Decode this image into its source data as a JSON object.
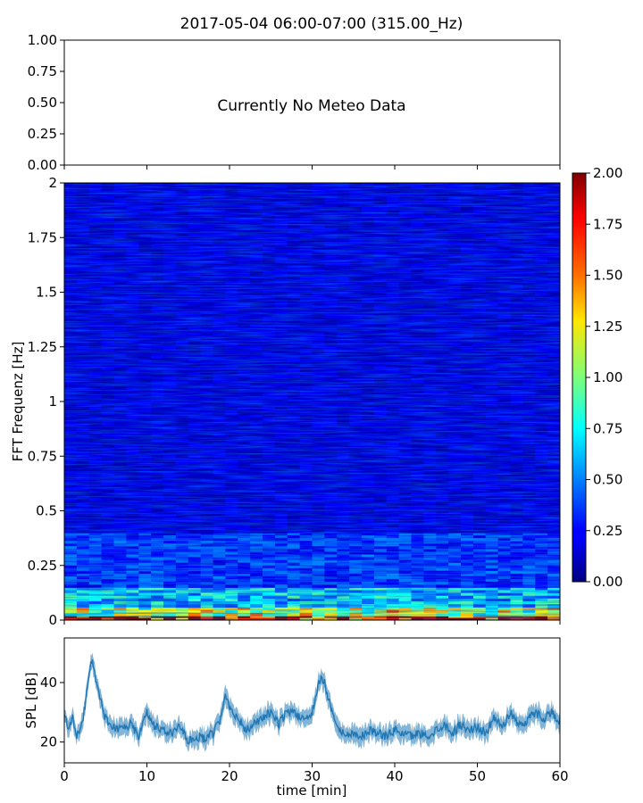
{
  "figure_title": "2017-05-04 06:00-07:00 (315.00_Hz)",
  "chart_data": [
    {
      "type": "text_panel",
      "annotation": "Currently No Meteo Data",
      "ylim": [
        0,
        1
      ],
      "yticks": [
        "0.00",
        "0.25",
        "0.50",
        "0.75",
        "1.00"
      ],
      "xlim": [
        0,
        60
      ]
    },
    {
      "type": "heatmap",
      "ylabel": "FFT Frequenz [Hz]",
      "xlim": [
        0,
        60
      ],
      "ylim": [
        0,
        2
      ],
      "yticks": [
        "0",
        "0.25",
        "0.5",
        "0.75",
        "1",
        "1.25",
        "1.5",
        "1.75",
        "2"
      ],
      "colormap": "jet",
      "colorbar": {
        "range": [
          0,
          2
        ],
        "ticks": [
          "0.00",
          "0.25",
          "0.50",
          "0.75",
          "1.00",
          "1.25",
          "1.50",
          "1.75",
          "2.00"
        ]
      },
      "bands": [
        {
          "f_from": 0.0,
          "f_to": 0.02,
          "value": 1.9
        },
        {
          "f_from": 0.02,
          "f_to": 0.06,
          "value": 1.1
        },
        {
          "f_from": 0.06,
          "f_to": 0.15,
          "value": 0.65
        },
        {
          "f_from": 0.15,
          "f_to": 0.4,
          "value": 0.35
        },
        {
          "f_from": 0.4,
          "f_to": 2.0,
          "value": 0.18
        }
      ]
    },
    {
      "type": "line",
      "ylabel": "SPL [dB]",
      "xlabel": "time [min]",
      "xlim": [
        0,
        60
      ],
      "ylim": [
        13,
        55
      ],
      "yticks": [
        "20",
        "40"
      ],
      "xticks": [
        "0",
        "10",
        "20",
        "30",
        "40",
        "50",
        "60"
      ],
      "color": "#1f77b4",
      "series": [
        {
          "x": [
            0,
            0.5,
            1,
            1.5,
            2,
            2.5,
            3,
            3.3,
            4,
            5,
            6,
            7,
            8,
            9,
            10,
            11,
            12,
            13,
            14,
            15,
            16,
            17,
            18,
            19,
            19.5,
            20,
            21,
            22,
            23,
            24,
            25,
            26,
            27,
            28,
            29,
            30,
            31,
            31.5,
            32,
            33,
            34,
            35,
            36,
            37,
            38,
            39,
            40,
            41,
            42,
            43,
            44,
            45,
            46,
            47,
            48,
            49,
            50,
            51,
            52,
            53,
            54,
            55,
            56,
            57,
            58,
            59,
            60
          ],
          "y": [
            30,
            25,
            28,
            22,
            24,
            32,
            44,
            48,
            38,
            28,
            25,
            24,
            26,
            22,
            30,
            25,
            24,
            23,
            25,
            20,
            22,
            21,
            23,
            28,
            36,
            32,
            28,
            24,
            26,
            28,
            30,
            26,
            31,
            29,
            28,
            30,
            42,
            40,
            34,
            26,
            22,
            23,
            22,
            24,
            23,
            22,
            24,
            23,
            22,
            23,
            22,
            24,
            26,
            23,
            26,
            24,
            25,
            23,
            28,
            25,
            30,
            26,
            27,
            30,
            28,
            30,
            27
          ],
          "band": 4
        }
      ]
    }
  ]
}
